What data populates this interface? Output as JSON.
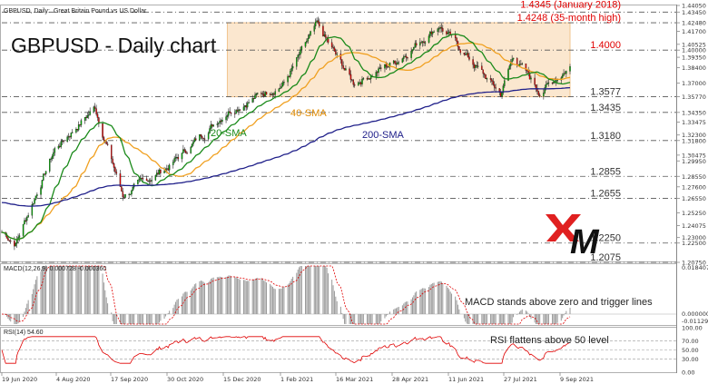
{
  "header": {
    "symbol_line": "GBPUSD, Daily:",
    "description": "Great Britain Pound vs US Dollar"
  },
  "title": "GBPUSD - Daily chart",
  "colors": {
    "bull": "#00aa00",
    "bear": "#e00000",
    "sma20": "#1a8a1a",
    "sma40": "#f0a020",
    "sma200": "#20208a",
    "level_red": "#e00000",
    "level_dark": "#333333",
    "range_fill": "#fbe7cf",
    "range_border": "#f2c48f"
  },
  "price_axis_labels": [
    "1.44050",
    "1.43450",
    "1.42480",
    "1.41700",
    "1.40525",
    "1.40000",
    "1.39350",
    "1.38400",
    "1.37000",
    "1.35770",
    "1.34350",
    "1.33475",
    "1.32300",
    "1.31800",
    "1.30475",
    "1.29950",
    "1.28550",
    "1.27600",
    "1.26550",
    "1.25250",
    "1.24075",
    "1.23000",
    "1.22500",
    "1.20750"
  ],
  "levels": [
    {
      "value": 1.4345,
      "label": "1.4345 (January 2018)",
      "color": "red",
      "style": "dash"
    },
    {
      "value": 1.4248,
      "label": "1.4248 (35-month high)",
      "color": "red",
      "style": "dash"
    },
    {
      "value": 1.4,
      "label": "1.4000",
      "color": "red",
      "style": "dash"
    },
    {
      "value": 1.3577,
      "label": "1.3577",
      "color": "dark",
      "style": "dash"
    },
    {
      "value": 1.3435,
      "label": "1.3435",
      "color": "dark",
      "style": "dash"
    },
    {
      "value": 1.318,
      "label": "1.3180",
      "color": "dark",
      "style": "dash"
    },
    {
      "value": 1.2855,
      "label": "1.2855",
      "color": "dark",
      "style": "dash"
    },
    {
      "value": 1.2655,
      "label": "1.2655",
      "color": "dark",
      "style": "dash"
    },
    {
      "value": 1.225,
      "label": "1.2250",
      "color": "dark",
      "style": "dash"
    },
    {
      "value": 1.2075,
      "label": "1.2075",
      "color": "dark",
      "style": "dash"
    }
  ],
  "annotations": {
    "sma20": "20-SMA",
    "sma40": "40-SMA",
    "sma200": "200-SMA"
  },
  "logo_text": "XM",
  "macd": {
    "label": "MACD(12,26,9) 0.000728 -0.000360",
    "note": "MACD stands above zero and trigger lines",
    "axis_labels": [
      "0.018407",
      "0.000000",
      "-0.011294"
    ]
  },
  "rsi": {
    "label": "RSI(14) 54.60",
    "note": "RSI flattens above 50 level",
    "axis_labels": [
      "100.00",
      "70.00",
      "50.00",
      "30.00",
      "0.00"
    ]
  },
  "x_axis_labels": [
    "19 Jun 2020",
    "4 Aug 2020",
    "17 Sep 2020",
    "30 Oct 2020",
    "15 Dec 2020",
    "1 Feb 2021",
    "16 Mar 2021",
    "28 Apr 2021",
    "11 Jun 2021",
    "27 Jul 2021",
    "9 Sep 2021"
  ],
  "chart_data": {
    "type": "candlestick",
    "symbol": "GBPUSD",
    "timeframe": "Daily",
    "x_range": [
      "2020-06-19",
      "2021-09-13"
    ],
    "y_range": [
      1.2075,
      1.4405
    ],
    "key_points": [
      {
        "date": "2020-06-19",
        "close": 1.235
      },
      {
        "date": "2020-06-30",
        "close": 1.225
      },
      {
        "date": "2020-07-31",
        "close": 1.31
      },
      {
        "date": "2020-09-01",
        "close": 1.348
      },
      {
        "date": "2020-09-23",
        "close": 1.268
      },
      {
        "date": "2020-10-30",
        "close": 1.295
      },
      {
        "date": "2020-12-15",
        "close": 1.345
      },
      {
        "date": "2021-01-29",
        "close": 1.37
      },
      {
        "date": "2021-02-24",
        "close": 1.422
      },
      {
        "date": "2021-03-25",
        "close": 1.37
      },
      {
        "date": "2021-04-28",
        "close": 1.39
      },
      {
        "date": "2021-06-01",
        "close": 1.423
      },
      {
        "date": "2021-07-20",
        "close": 1.36
      },
      {
        "date": "2021-07-30",
        "close": 1.395
      },
      {
        "date": "2021-08-20",
        "close": 1.362
      },
      {
        "date": "2021-09-13",
        "close": 1.385
      }
    ],
    "range_box": {
      "from": "2020-12-15",
      "to": "2021-09-13",
      "high": 1.4248,
      "low": 1.3577
    }
  }
}
